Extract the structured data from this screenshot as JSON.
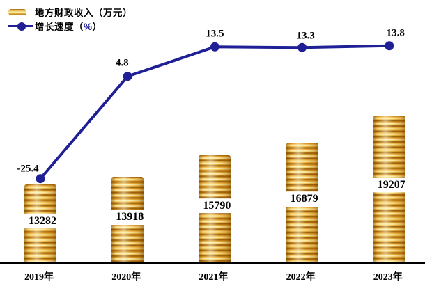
{
  "legend": {
    "items": [
      {
        "label": "地方财政收入（万元）",
        "type": "bar-swatch",
        "color": "#e8b23c"
      },
      {
        "label_prefix": "增长速度（",
        "label_percent": "%",
        "label_suffix": "）",
        "type": "line-marker",
        "color": "#1f1f96"
      }
    ]
  },
  "chart_data": {
    "type": "bar+line",
    "categories": [
      "2019年",
      "2020年",
      "2021年",
      "2022年",
      "2023年"
    ],
    "series": [
      {
        "name": "地方财政收入（万元）",
        "type": "bar",
        "style": "gold-coin-stack",
        "values": [
          13282,
          13918,
          15790,
          16879,
          19207
        ],
        "value_labels": [
          "13282",
          "13918",
          "15790",
          "16879",
          "19207"
        ],
        "ylim": [
          6500,
          19300
        ]
      },
      {
        "name": "增长速度（%）",
        "type": "line",
        "color": "#1f1f96",
        "values": [
          -25.4,
          4.8,
          13.5,
          13.3,
          13.8
        ],
        "value_labels": [
          "-25.4",
          "4.8",
          "13.5",
          "13.3",
          "13.8"
        ],
        "ylim": [
          -30,
          20
        ]
      }
    ],
    "grid": false,
    "y_axis_visible": false,
    "legend_position": "top-left",
    "background": "#ffffff"
  }
}
